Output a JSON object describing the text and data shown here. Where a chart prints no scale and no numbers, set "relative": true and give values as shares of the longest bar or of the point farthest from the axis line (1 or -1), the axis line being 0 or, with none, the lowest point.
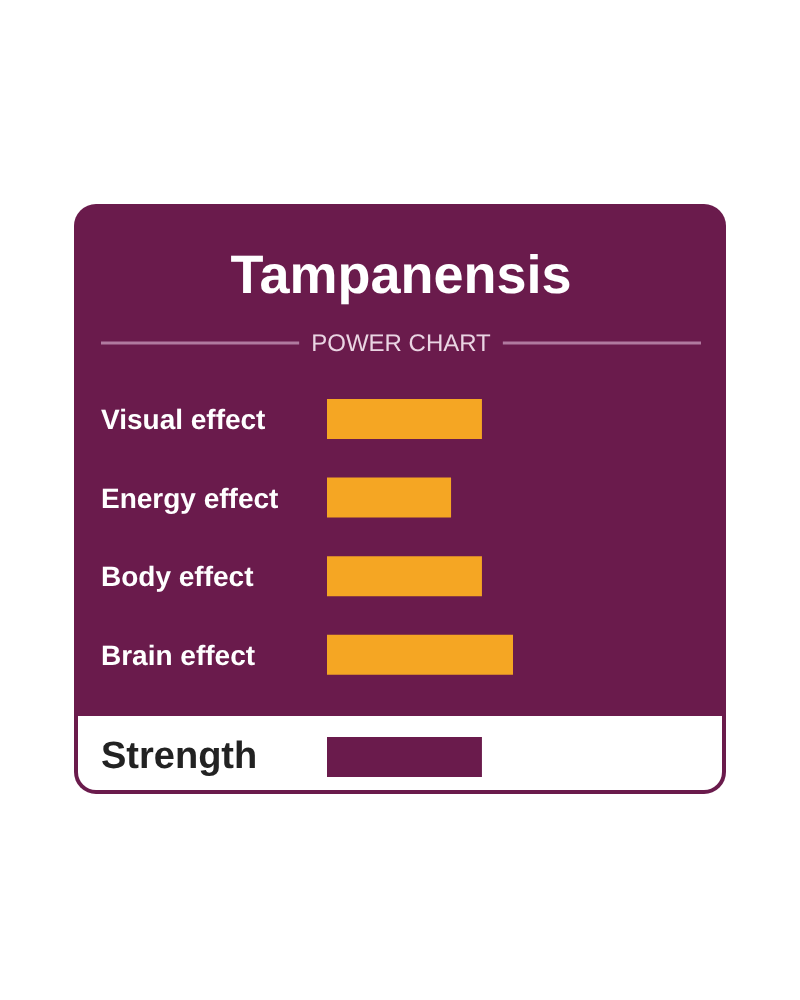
{
  "chart_data": {
    "type": "bar",
    "orientation": "horizontal",
    "relative": true,
    "title": "Tampanensis",
    "subtitle": "POWER CHART",
    "categories": [
      "Visual effect",
      "Energy effect",
      "Body effect",
      "Brain effect",
      "Strength"
    ],
    "values": [
      0.833,
      0.667,
      0.833,
      1,
      0.833
    ],
    "colors": [
      "#f5a623",
      "#f5a623",
      "#f5a623",
      "#f5a623",
      "#6a1b4c"
    ]
  }
}
